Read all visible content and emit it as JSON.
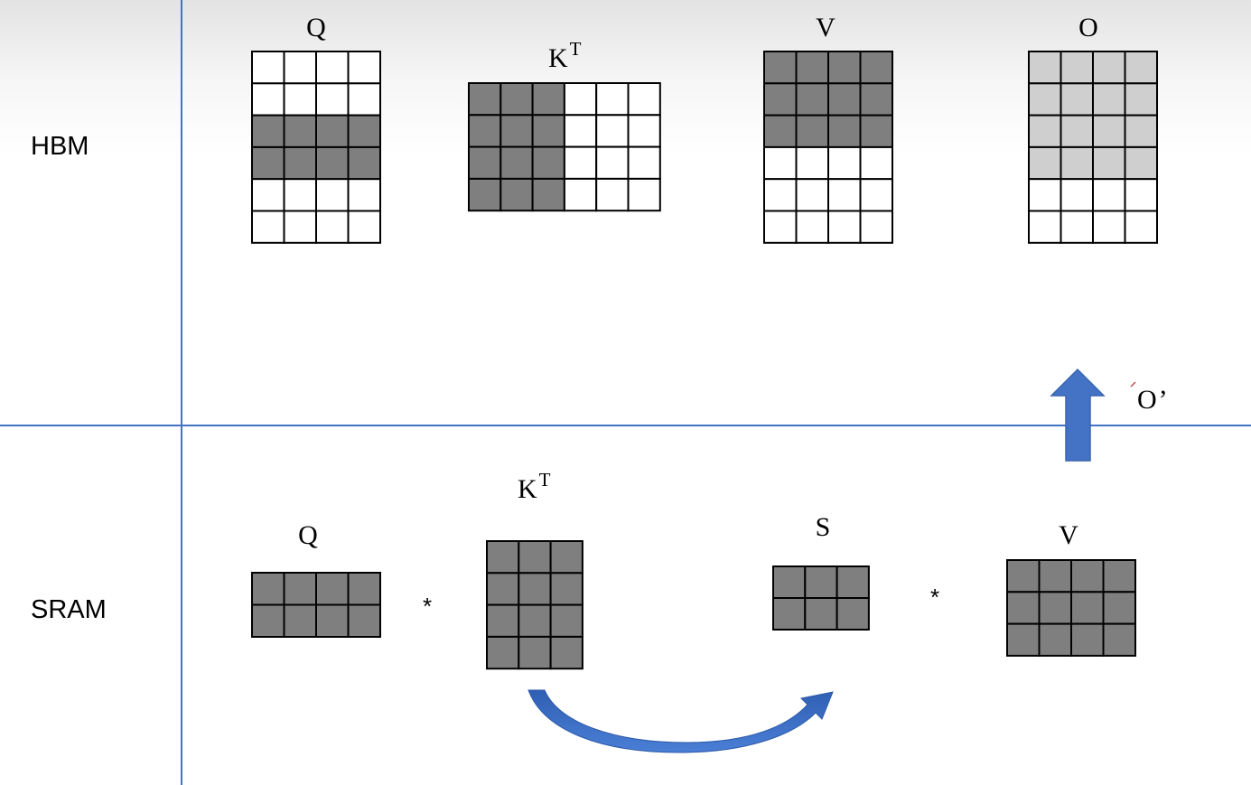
{
  "regions": {
    "top": "HBM",
    "bottom": "SRAM"
  },
  "hbm": {
    "q_label": "Q",
    "kt_label": "K",
    "kt_sup": "T",
    "v_label": "V",
    "o_label": "O"
  },
  "sram": {
    "q_label": "Q",
    "op1": "*",
    "kt_label": "K",
    "kt_sup": "T",
    "s_label": "S",
    "op2": "*",
    "v_label": "V"
  },
  "writeback_label": "O",
  "writeback_mark": "’",
  "colors": {
    "divider": "#4472c4",
    "filled": "#7f7f7f",
    "output_filled": "#cfcfcf",
    "empty": "#ffffff",
    "arrow": "#4472c4"
  }
}
